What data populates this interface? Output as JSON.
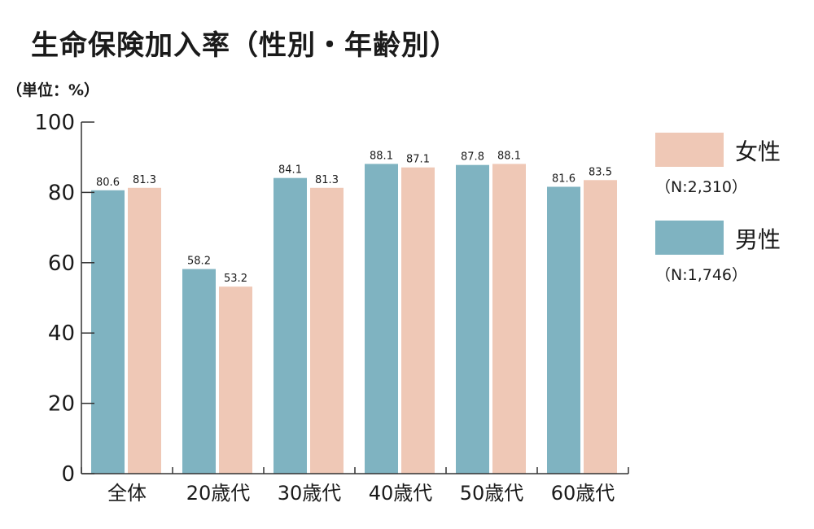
{
  "title": "生命保険加入率（性別・年齢別）",
  "unit": "（単位：%）",
  "chart_data": {
    "type": "bar",
    "categories": [
      "全体",
      "20歳代",
      "30歳代",
      "40歳代",
      "50歳代",
      "60歳代"
    ],
    "series": [
      {
        "name": "男性",
        "color": "#7fb3c1",
        "values": [
          80.6,
          58.2,
          84.1,
          88.1,
          87.8,
          81.6
        ],
        "value_labels": [
          "80.6",
          "58.2",
          "84.1",
          "88.1",
          "87.8",
          "81.6"
        ]
      },
      {
        "name": "女性",
        "color": "#efc8b6",
        "values": [
          81.3,
          53.2,
          81.3,
          87.1,
          88.1,
          83.5
        ],
        "value_labels": [
          "81.3",
          "53.2",
          "81.3",
          "87.1",
          "88.1",
          "83.5"
        ]
      }
    ],
    "ylim": [
      0,
      100
    ],
    "yticks": [
      0,
      20,
      40,
      60,
      80,
      100
    ],
    "ytick_labels": [
      "0",
      "20",
      "40",
      "60",
      "80",
      "100"
    ],
    "grid": false,
    "legend_position": "right"
  },
  "legend": [
    {
      "name": "女性",
      "n": "（N:2,310）",
      "color": "#efc8b6"
    },
    {
      "name": "男性",
      "n": "（N:1,746）",
      "color": "#7fb3c1"
    }
  ]
}
